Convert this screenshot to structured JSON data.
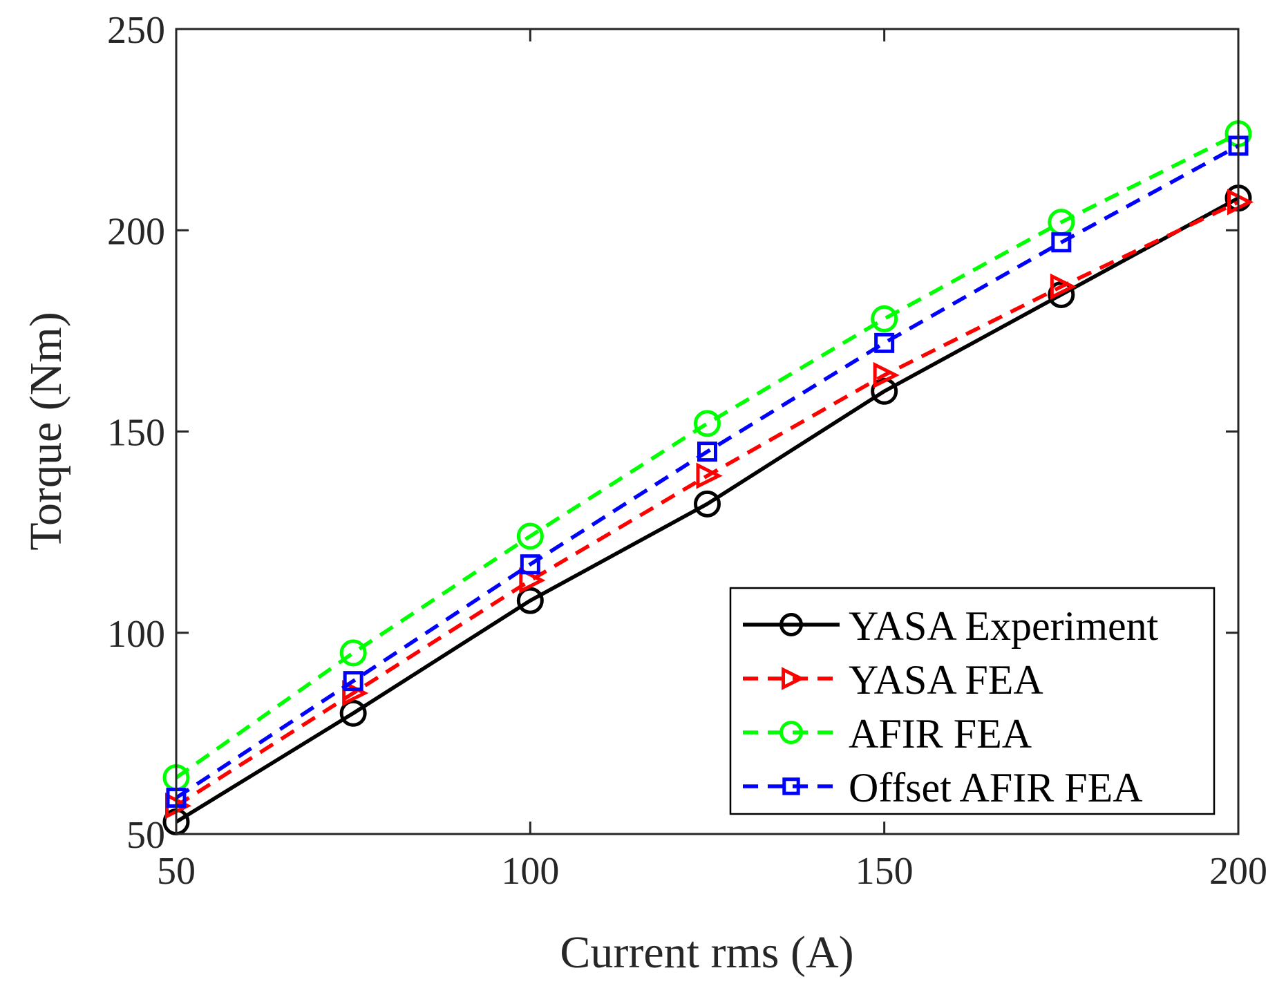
{
  "chart_data": {
    "type": "line",
    "title": "",
    "xlabel": "Current rms (A)",
    "ylabel": "Torque (Nm)",
    "xlim": [
      50,
      200
    ],
    "ylim": [
      50,
      250
    ],
    "xticks": [
      50,
      100,
      150,
      200
    ],
    "yticks": [
      50,
      100,
      150,
      200,
      250
    ],
    "grid": false,
    "legend_position": "bottom-right",
    "x": [
      50,
      75,
      100,
      125,
      150,
      175,
      200
    ],
    "series": [
      {
        "name": "YASA Experiment",
        "values": [
          53,
          80,
          108,
          132,
          160,
          184,
          208
        ],
        "color": "#000000",
        "line": "solid",
        "marker": "circle"
      },
      {
        "name": "YASA FEA",
        "values": [
          57,
          85,
          113,
          139,
          164,
          186,
          207
        ],
        "color": "#ff0000",
        "line": "dashed",
        "marker": "triangle-right"
      },
      {
        "name": "AFIR FEA",
        "values": [
          64,
          95,
          124,
          152,
          178,
          202,
          224
        ],
        "color": "#00ff00",
        "line": "dashed",
        "marker": "circle"
      },
      {
        "name": "Offset AFIR FEA",
        "values": [
          59,
          88,
          117,
          145,
          172,
          197,
          221
        ],
        "color": "#0000ff",
        "line": "dashed",
        "marker": "square"
      }
    ]
  }
}
